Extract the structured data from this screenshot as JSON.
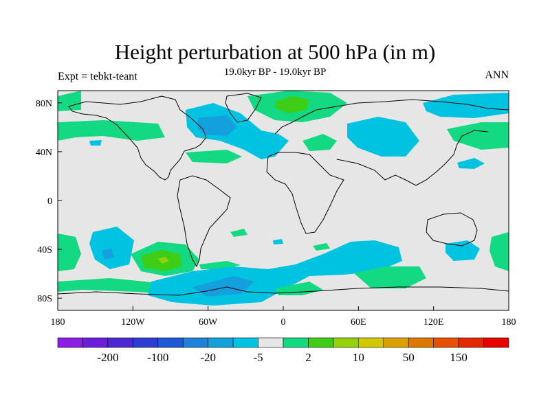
{
  "title": "Height perturbation at 500 hPa (in m)",
  "subtitle": "19.0kyr BP - 19.0kyr BP",
  "left_label": "Expt = tebkt-teant",
  "right_label": "ANN",
  "axes": {
    "x_ticks": [
      "180",
      "120W",
      "60W",
      "0",
      "60E",
      "120E",
      "180"
    ],
    "y_ticks": [
      "80N",
      "40N",
      "0",
      "40S",
      "80S"
    ]
  },
  "colorbar": {
    "colors": [
      "#8c1ee6",
      "#6a1edc",
      "#4b28d2",
      "#2d3cd2",
      "#1e5ad7",
      "#1e82dc",
      "#14a0dc",
      "#00c3e1",
      "#e6e6e6",
      "#13d982",
      "#3ccd14",
      "#96d20a",
      "#d2c800",
      "#dca000",
      "#dc7800",
      "#e65000",
      "#e62800",
      "#e60000"
    ],
    "labels": [
      "-200",
      "-100",
      "-20",
      "-5",
      "2",
      "10",
      "50",
      "150"
    ]
  },
  "chart_data": {
    "type": "heatmap",
    "variable": "Height perturbation at 500 hPa",
    "units": "m",
    "projection": "cylindrical-equidistant",
    "lon_range": [
      -180,
      180
    ],
    "lat_range": [
      -90,
      90
    ],
    "colorbar_levels": [
      "-200",
      "-100",
      "-20",
      "-5",
      "2",
      "10",
      "50",
      "150"
    ],
    "background_color": "#e6e6e6",
    "regions": [
      {
        "sign": "positive",
        "level": "2-10",
        "center_lon": -180,
        "center_lat": 50
      },
      {
        "sign": "negative",
        "level": "-5-2",
        "center_lon": -90,
        "center_lat": 55
      },
      {
        "sign": "negative",
        "level": "-20--5",
        "center_lon": -75,
        "center_lat": 45
      },
      {
        "sign": "negative",
        "level": "-5-2",
        "center_lon": 70,
        "center_lat": 50
      },
      {
        "sign": "negative",
        "level": "-5-2",
        "center_lon": 150,
        "center_lat": 75
      },
      {
        "sign": "positive",
        "level": "2-10",
        "center_lon": 10,
        "center_lat": 75
      },
      {
        "sign": "positive",
        "level": "10-50",
        "center_lon": 20,
        "center_lat": 75
      },
      {
        "sign": "positive",
        "level": "2-10",
        "center_lon": 160,
        "center_lat": 45
      },
      {
        "sign": "positive",
        "level": "2-10",
        "center_lon": 60,
        "center_lat": 40
      },
      {
        "sign": "negative",
        "level": "-5-2",
        "center_lon": 145,
        "center_lat": 25
      },
      {
        "sign": "negative",
        "level": "-5-2",
        "center_lon": -140,
        "center_lat": -40
      },
      {
        "sign": "negative",
        "level": "-20--5",
        "center_lon": -140,
        "center_lat": -45
      },
      {
        "sign": "positive",
        "level": "2-10",
        "center_lon": -100,
        "center_lat": -50
      },
      {
        "sign": "positive",
        "level": "10-50",
        "center_lon": -100,
        "center_lat": -50
      },
      {
        "sign": "positive",
        "level": "2-10",
        "center_lon": -180,
        "center_lat": -40
      },
      {
        "sign": "negative",
        "level": "-5-2",
        "center_lon": 175,
        "center_lat": -40
      },
      {
        "sign": "negative",
        "level": "-5-2",
        "center_lon": 60,
        "center_lat": -45
      },
      {
        "sign": "positive",
        "level": "2-10",
        "center_lon": 100,
        "center_lat": -65
      },
      {
        "sign": "negative",
        "level": "-5-2",
        "center_lon": -60,
        "center_lat": -70
      },
      {
        "sign": "negative",
        "level": "-20--5",
        "center_lon": -35,
        "center_lat": -65
      },
      {
        "sign": "positive",
        "level": "2-10",
        "center_lon": -130,
        "center_lat": -70
      }
    ]
  }
}
